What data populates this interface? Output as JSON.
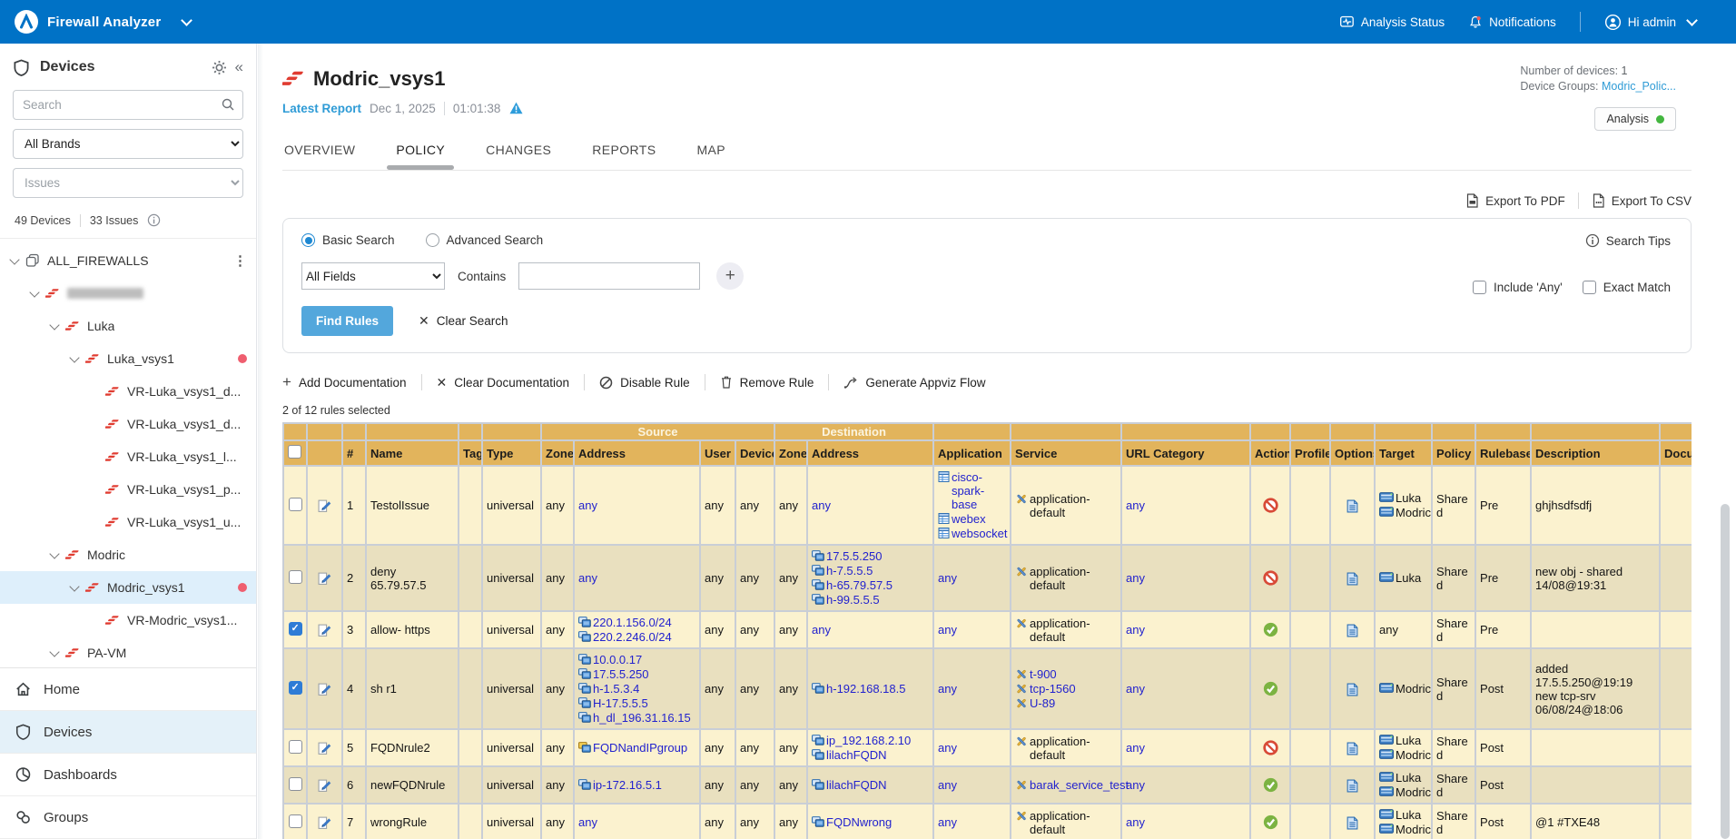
{
  "topbar": {
    "brand": "Firewall Analyzer",
    "analysis_status": "Analysis Status",
    "notifications": "Notifications",
    "user_greeting": "Hi admin"
  },
  "sidebar": {
    "title": "Devices",
    "search_placeholder": "Search",
    "brand_filter_value": "All Brands",
    "issues_filter_value": "Issues",
    "devices_count": "49 Devices",
    "issues_count": "33 Issues",
    "tree": [
      {
        "label": "ALL_FIREWALLS",
        "level": 0,
        "chevron": true,
        "icon": "device-group",
        "kebab": true
      },
      {
        "label": "",
        "level": 1,
        "chevron": true,
        "icon": "pa",
        "redacted": true
      },
      {
        "label": "Luka",
        "level": 2,
        "chevron": true,
        "icon": "pa"
      },
      {
        "label": "Luka_vsys1",
        "level": 3,
        "chevron": true,
        "icon": "pa",
        "dot": true
      },
      {
        "label": "VR-Luka_vsys1_d...",
        "level": 4,
        "icon": "pa"
      },
      {
        "label": "VR-Luka_vsys1_d...",
        "level": 4,
        "icon": "pa"
      },
      {
        "label": "VR-Luka_vsys1_l...",
        "level": 4,
        "icon": "pa"
      },
      {
        "label": "VR-Luka_vsys1_p...",
        "level": 4,
        "icon": "pa"
      },
      {
        "label": "VR-Luka_vsys1_u...",
        "level": 4,
        "icon": "pa"
      },
      {
        "label": "Modric",
        "level": 2,
        "chevron": true,
        "icon": "pa"
      },
      {
        "label": "Modric_vsys1",
        "level": 3,
        "chevron": true,
        "icon": "pa",
        "dot": true,
        "selected": true
      },
      {
        "label": "VR-Modric_vsys1...",
        "level": 4,
        "icon": "pa"
      },
      {
        "label": "PA-VM",
        "level": 2,
        "chevron": true,
        "icon": "pa"
      }
    ],
    "nav": [
      {
        "label": "Home",
        "icon": "home"
      },
      {
        "label": "Devices",
        "icon": "shield",
        "active": true
      },
      {
        "label": "Dashboards",
        "icon": "dashboard"
      },
      {
        "label": "Groups",
        "icon": "groups"
      }
    ]
  },
  "header": {
    "title": "Modric_vsys1",
    "latest_report_label": "Latest Report",
    "report_date": "Dec 1, 2025",
    "report_time": "01:01:38",
    "devices_info_label": "Number of devices:",
    "devices_info_value": "1",
    "device_groups_label": "Device Groups:",
    "device_groups_value": "Modric_Polic...",
    "analysis_badge_label": "Analysis",
    "export_pdf": "Export To PDF",
    "export_csv": "Export To CSV",
    "tabs": [
      {
        "label": "OVERVIEW"
      },
      {
        "label": "POLICY",
        "active": true
      },
      {
        "label": "CHANGES"
      },
      {
        "label": "REPORTS"
      },
      {
        "label": "MAP"
      }
    ]
  },
  "search_panel": {
    "basic_search": "Basic Search",
    "advanced_search": "Advanced Search",
    "search_tips": "Search Tips",
    "field_selector_value": "All Fields",
    "contains_label": "Contains",
    "input_value": "",
    "plus_label": "+",
    "include_any": "Include 'Any'",
    "exact_match": "Exact Match",
    "find_rules": "Find Rules",
    "clear_search": "Clear Search"
  },
  "rules_toolbar": {
    "add_documentation": "Add Documentation",
    "clear_documentation": "Clear Documentation",
    "disable_rule": "Disable Rule",
    "remove_rule": "Remove Rule",
    "generate_appviz": "Generate Appviz Flow",
    "selection_summary": "2 of 12 rules selected"
  },
  "rules_table": {
    "group_source": "Source",
    "group_destination": "Destination",
    "columns": [
      "#",
      "Name",
      "Tag",
      "Type",
      "Zone",
      "Address",
      "User",
      "Device",
      "Zone",
      "Address",
      "Application",
      "Service",
      "URL Category",
      "Action",
      "Profile",
      "Options",
      "Target",
      "Policy",
      "Rulebase",
      "Description",
      "Docu"
    ],
    "rows": [
      {
        "num": "1",
        "checked": false,
        "name": "TestolIssue",
        "tag": "",
        "type": "universal",
        "src_zone": "any",
        "src_address": [
          {
            "text": "any"
          }
        ],
        "user": "any",
        "device": "any",
        "dst_zone": "any",
        "dst_address": [
          {
            "text": "any"
          }
        ],
        "application": [
          {
            "text": "cisco-spark-base",
            "icon": "app"
          },
          {
            "text": "webex",
            "icon": "app"
          },
          {
            "text": "websocket",
            "icon": "app"
          }
        ],
        "service": [
          {
            "text": "application-default",
            "icon": "tools",
            "plain": true
          }
        ],
        "url_category": "any",
        "action": "deny",
        "profile": "",
        "options": "log",
        "target": [
          {
            "text": "Luka",
            "icon": "device"
          },
          {
            "text": "Modric",
            "icon": "device"
          }
        ],
        "policy": "Shared",
        "rulebase": "Pre",
        "description": "ghjhsdfsdfj",
        "docu": ""
      },
      {
        "num": "2",
        "checked": false,
        "name": "deny 65.79.57.5",
        "tag": "",
        "type": "universal",
        "src_zone": "any",
        "src_address": [
          {
            "text": "any"
          }
        ],
        "user": "any",
        "device": "any",
        "dst_zone": "any",
        "dst_address": [
          {
            "text": "17.5.5.250",
            "icon": "host"
          },
          {
            "text": "h-7.5.5.5",
            "icon": "host"
          },
          {
            "text": "h-65.79.57.5",
            "icon": "host"
          },
          {
            "text": "h-99.5.5.5",
            "icon": "host"
          }
        ],
        "application": [
          {
            "text": "any"
          }
        ],
        "service": [
          {
            "text": "application-default",
            "icon": "tools",
            "plain": true
          }
        ],
        "url_category": "any",
        "action": "deny",
        "profile": "",
        "options": "log",
        "target": [
          {
            "text": "Luka",
            "icon": "device"
          }
        ],
        "policy": "Shared",
        "rulebase": "Pre",
        "description": "new obj - shared 14/08@19:31",
        "docu": ""
      },
      {
        "num": "3",
        "checked": true,
        "name": "allow- https",
        "tag": "",
        "type": "universal",
        "src_zone": "any",
        "src_address": [
          {
            "text": "220.1.156.0/24",
            "icon": "host"
          },
          {
            "text": "220.2.246.0/24",
            "icon": "host"
          }
        ],
        "user": "any",
        "device": "any",
        "dst_zone": "any",
        "dst_address": [
          {
            "text": "any"
          }
        ],
        "application": [
          {
            "text": "any"
          }
        ],
        "service": [
          {
            "text": "application-default",
            "icon": "tools",
            "plain": true
          }
        ],
        "url_category": "any",
        "action": "allow",
        "profile": "",
        "options": "log",
        "target": [
          {
            "text": "any"
          }
        ],
        "policy": "Shared",
        "rulebase": "Pre",
        "description": "",
        "docu": ""
      },
      {
        "num": "4",
        "checked": true,
        "name": "sh r1",
        "tag": "",
        "type": "universal",
        "src_zone": "any",
        "src_address": [
          {
            "text": "10.0.0.17",
            "icon": "host"
          },
          {
            "text": "17.5.5.250",
            "icon": "host"
          },
          {
            "text": "h-1.5.3.4",
            "icon": "host"
          },
          {
            "text": "H-17.5.5.5",
            "icon": "host"
          },
          {
            "text": "h_dl_196.31.16.15",
            "icon": "host"
          }
        ],
        "user": "any",
        "device": "any",
        "dst_zone": "any",
        "dst_address": [
          {
            "text": "h-192.168.18.5",
            "icon": "host"
          }
        ],
        "application": [
          {
            "text": "any"
          }
        ],
        "service": [
          {
            "text": "t-900",
            "icon": "tools"
          },
          {
            "text": "tcp-1560",
            "icon": "tools"
          },
          {
            "text": "U-89",
            "icon": "tools"
          }
        ],
        "url_category": "any",
        "action": "allow",
        "profile": "",
        "options": "log",
        "target": [
          {
            "text": "Modric",
            "icon": "device"
          }
        ],
        "policy": "Shared",
        "rulebase": "Post",
        "description": "added 17.5.5.250@19:19 new tcp-srv 06/08/24@18:06",
        "docu": ""
      },
      {
        "num": "5",
        "checked": false,
        "name": "FQDNrule2",
        "tag": "",
        "type": "universal",
        "src_zone": "any",
        "src_address": [
          {
            "text": "FQDNandIPgroup",
            "icon": "group"
          }
        ],
        "user": "any",
        "device": "any",
        "dst_zone": "any",
        "dst_address": [
          {
            "text": "ip_192.168.2.10",
            "icon": "host"
          },
          {
            "text": "lilachFQDN",
            "icon": "host"
          }
        ],
        "application": [
          {
            "text": "any"
          }
        ],
        "service": [
          {
            "text": "application-default",
            "icon": "tools",
            "plain": true
          }
        ],
        "url_category": "any",
        "action": "deny",
        "profile": "",
        "options": "log",
        "target": [
          {
            "text": "Luka",
            "icon": "device"
          },
          {
            "text": "Modric",
            "icon": "device"
          }
        ],
        "policy": "Shared",
        "rulebase": "Post",
        "description": "",
        "docu": ""
      },
      {
        "num": "6",
        "checked": false,
        "name": "newFQDNrule",
        "tag": "",
        "type": "universal",
        "src_zone": "any",
        "src_address": [
          {
            "text": "ip-172.16.5.1",
            "icon": "host"
          }
        ],
        "user": "any",
        "device": "any",
        "dst_zone": "any",
        "dst_address": [
          {
            "text": "lilachFQDN",
            "icon": "host"
          }
        ],
        "application": [
          {
            "text": "any"
          }
        ],
        "service": [
          {
            "text": "barak_service_test",
            "icon": "tools"
          }
        ],
        "url_category": "any",
        "action": "allow",
        "profile": "",
        "options": "log",
        "target": [
          {
            "text": "Luka",
            "icon": "device"
          },
          {
            "text": "Modric",
            "icon": "device"
          }
        ],
        "policy": "Shared",
        "rulebase": "Post",
        "description": "",
        "docu": ""
      },
      {
        "num": "7",
        "checked": false,
        "name": "wrongRule",
        "tag": "",
        "type": "universal",
        "src_zone": "any",
        "src_address": [
          {
            "text": "any"
          }
        ],
        "user": "any",
        "device": "any",
        "dst_zone": "any",
        "dst_address": [
          {
            "text": "FQDNwrong",
            "icon": "host"
          }
        ],
        "application": [
          {
            "text": "any"
          }
        ],
        "service": [
          {
            "text": "application-default",
            "icon": "tools",
            "plain": true
          }
        ],
        "url_category": "any",
        "action": "allow",
        "profile": "",
        "options": "log",
        "target": [
          {
            "text": "Luka",
            "icon": "device"
          },
          {
            "text": "Modric",
            "icon": "device"
          }
        ],
        "policy": "Shared",
        "rulebase": "Post",
        "description": "@1 #TXE48",
        "docu": ""
      }
    ]
  }
}
